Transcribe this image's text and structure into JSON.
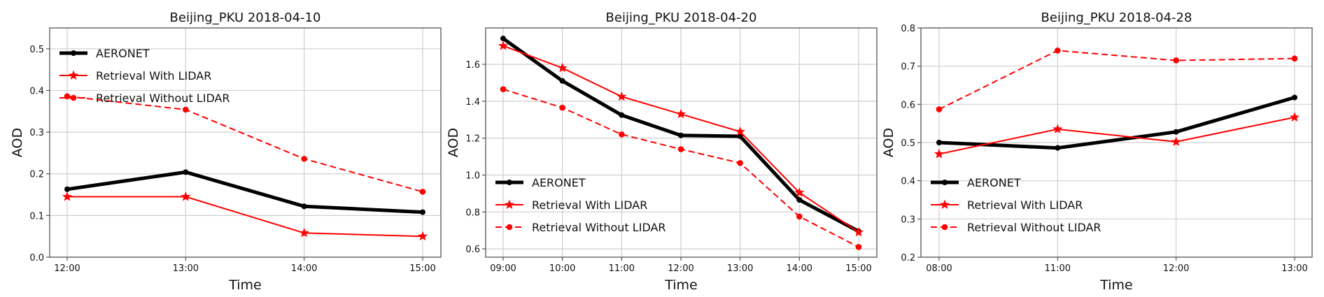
{
  "chart_data": [
    {
      "type": "line",
      "title": "Beijing_PKU 2018-04-10",
      "xlabel": "Time",
      "ylabel": "AOD",
      "categories": [
        "12:00",
        "13:00",
        "14:00",
        "15:00"
      ],
      "ylim": [
        0.0,
        0.55
      ],
      "yticks": [
        "0.0",
        "0.1",
        "0.2",
        "0.3",
        "0.4",
        "0.5"
      ],
      "grid": true,
      "legend_position": "upper-left",
      "series": [
        {
          "name": "AERONET",
          "color": "#000000",
          "style": "solid-thick",
          "marker": "circle",
          "values": [
            0.163,
            0.204,
            0.122,
            0.108
          ]
        },
        {
          "name": "Retrieval With LIDAR",
          "color": "#ff0000",
          "style": "solid",
          "marker": "star",
          "values": [
            0.145,
            0.145,
            0.058,
            0.05
          ]
        },
        {
          "name": "Retrieval Without LIDAR",
          "color": "#ff0000",
          "style": "dashed",
          "marker": "circle",
          "values": [
            0.386,
            0.354,
            0.236,
            0.157
          ]
        }
      ]
    },
    {
      "type": "line",
      "title": "Beijing_PKU 2018-04-20",
      "xlabel": "Time",
      "ylabel": "AOD",
      "categories": [
        "09:00",
        "10:00",
        "11:00",
        "12:00",
        "13:00",
        "14:00",
        "15:00"
      ],
      "ylim": [
        0.555,
        1.797
      ],
      "yticks": [
        "0.6",
        "0.8",
        "1.0",
        "1.2",
        "1.4",
        "1.6"
      ],
      "grid": true,
      "legend_position": "lower-left",
      "series": [
        {
          "name": "AERONET",
          "color": "#000000",
          "style": "solid-thick",
          "marker": "circle",
          "values": [
            1.74,
            1.51,
            1.325,
            1.215,
            1.21,
            0.865,
            0.695
          ]
        },
        {
          "name": "Retrieval With LIDAR",
          "color": "#ff0000",
          "style": "solid",
          "marker": "star",
          "values": [
            1.7,
            1.58,
            1.425,
            1.33,
            1.235,
            0.905,
            0.69
          ]
        },
        {
          "name": "Retrieval Without LIDAR",
          "color": "#ff0000",
          "style": "dashed",
          "marker": "circle",
          "values": [
            1.465,
            1.365,
            1.22,
            1.14,
            1.065,
            0.775,
            0.61
          ]
        }
      ]
    },
    {
      "type": "line",
      "title": "Beijing_PKU 2018-04-28",
      "xlabel": "Time",
      "ylabel": "AOD",
      "categories": [
        "08:00",
        "11:00",
        "12:00",
        "13:00"
      ],
      "ylim": [
        0.2,
        0.8
      ],
      "yticks": [
        "0.2",
        "0.3",
        "0.4",
        "0.5",
        "0.6",
        "0.7",
        "0.8"
      ],
      "grid": true,
      "legend_position": "lower-left",
      "series": [
        {
          "name": "AERONET",
          "color": "#000000",
          "style": "solid-thick",
          "marker": "circle",
          "values": [
            0.5,
            0.486,
            0.528,
            0.618
          ]
        },
        {
          "name": "Retrieval With LIDAR",
          "color": "#ff0000",
          "style": "solid",
          "marker": "star",
          "values": [
            0.47,
            0.535,
            0.502,
            0.566
          ]
        },
        {
          "name": "Retrieval Without LIDAR",
          "color": "#ff0000",
          "style": "dashed",
          "marker": "circle",
          "values": [
            0.587,
            0.741,
            0.715,
            0.72
          ]
        }
      ]
    }
  ]
}
